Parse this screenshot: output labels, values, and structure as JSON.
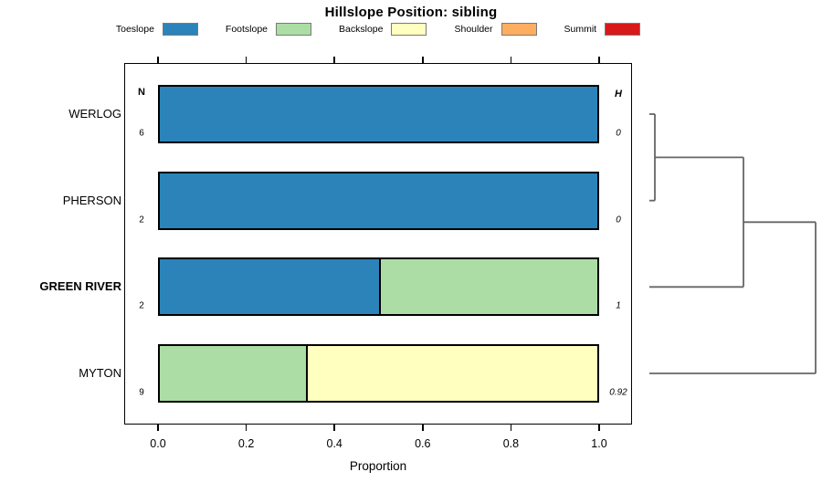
{
  "chart_data": {
    "type": "bar",
    "orientation": "horizontal",
    "stacked": true,
    "title": "Hillslope Position: sibling",
    "xlabel": "Proportion",
    "xlim": [
      0,
      1
    ],
    "x_tick_labels": [
      "0.0",
      "0.2",
      "0.4",
      "0.6",
      "0.8",
      "1.0"
    ],
    "grid": false,
    "legend_position": "top",
    "legend": [
      {
        "label": "Toeslope",
        "color": "#2B83BA"
      },
      {
        "label": "Footslope",
        "color": "#ABDDA4"
      },
      {
        "label": "Backslope",
        "color": "#FFFFBF"
      },
      {
        "label": "Shoulder",
        "color": "#FDAE61"
      },
      {
        "label": "Summit",
        "color": "#D7191C"
      }
    ],
    "categories": {
      "Toeslope": "#2B83BA",
      "Footslope": "#ABDDA4",
      "Backslope": "#FFFFBF",
      "Shoulder": "#FDAE61",
      "Summit": "#D7191C"
    },
    "col_headers": {
      "n": "N",
      "h": "H"
    },
    "rows": [
      {
        "label": "WERLOG",
        "bold": false,
        "n": "6",
        "h": "0",
        "segments": [
          {
            "category": "Toeslope",
            "proportion": 1.0
          }
        ]
      },
      {
        "label": "PHERSON",
        "bold": false,
        "n": "2",
        "h": "0",
        "segments": [
          {
            "category": "Toeslope",
            "proportion": 1.0
          }
        ]
      },
      {
        "label": "GREEN RIVER",
        "bold": true,
        "n": "2",
        "h": "1",
        "segments": [
          {
            "category": "Toeslope",
            "proportion": 0.5
          },
          {
            "category": "Footslope",
            "proportion": 0.5
          }
        ]
      },
      {
        "label": "MYTON",
        "bold": false,
        "n": "9",
        "h": "0.92",
        "segments": [
          {
            "category": "Footslope",
            "proportion": 0.333
          },
          {
            "category": "Backslope",
            "proportion": 0.667
          }
        ]
      }
    ],
    "dendrogram": {
      "line_color": "#666666",
      "merges": [
        {
          "a": [
            "leaf",
            0
          ],
          "b": [
            "leaf",
            1
          ],
          "height": 0.033
        },
        {
          "a": [
            "node",
            0
          ],
          "b": [
            "leaf",
            2
          ],
          "height": 0.566
        },
        {
          "a": [
            "node",
            1
          ],
          "b": [
            "leaf",
            3
          ],
          "height": 1.0
        }
      ]
    }
  }
}
